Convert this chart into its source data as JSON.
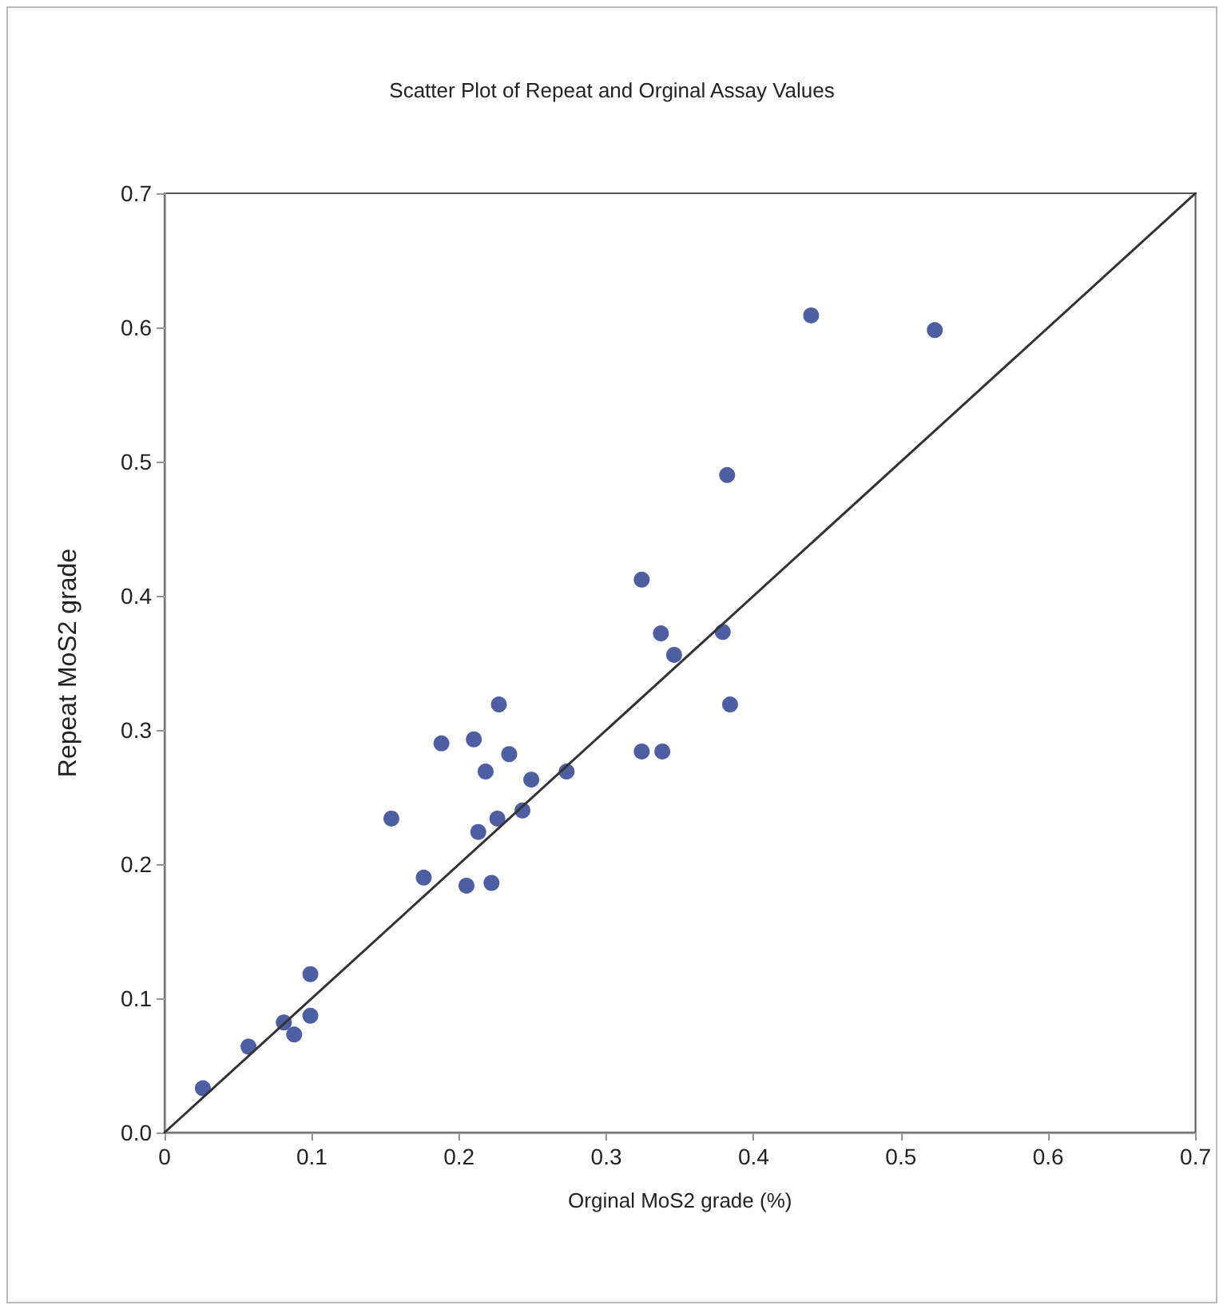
{
  "chart_data": {
    "type": "scatter",
    "title": "Scatter Plot of Repeat and Orginal Assay Values",
    "xlabel": "Orginal MoS2 grade (%)",
    "ylabel": "Repeat MoS2 grade",
    "xlim": [
      0,
      0.7
    ],
    "xticks": [
      0,
      0.1,
      0.2,
      0.3,
      0.4,
      0.5,
      0.6,
      0.7
    ],
    "ylim": [
      0,
      0.7
    ],
    "yticks": [
      {
        "value": 0,
        "label": "0.0"
      },
      0.1,
      0.2,
      0.3,
      0.4,
      0.5,
      0.6,
      0.7
    ],
    "grid": false,
    "marker": "circle",
    "series": [
      {
        "color": "#22368c",
        "x": [
          0.026,
          0.057,
          0.081,
          0.088,
          0.099,
          0.099,
          0.154,
          0.176,
          0.188,
          0.205,
          0.21,
          0.213,
          0.218,
          0.222,
          0.226,
          0.227,
          0.234,
          0.243,
          0.249,
          0.273,
          0.324,
          0.324,
          0.338,
          0.337,
          0.346,
          0.379,
          0.384,
          0.382,
          0.439,
          0.523
        ],
        "values": [
          0.033,
          0.064,
          0.082,
          0.073,
          0.087,
          0.118,
          0.234,
          0.19,
          0.29,
          0.184,
          0.293,
          0.224,
          0.269,
          0.186,
          0.234,
          0.319,
          0.282,
          0.24,
          0.263,
          0.269,
          0.412,
          0.284,
          0.284,
          0.372,
          0.356,
          0.373,
          0.319,
          0.49,
          0.609,
          0.598
        ]
      },
      {
        "type": "line",
        "color": "#333333",
        "line_style": "solid",
        "marker": "none",
        "x": [
          0,
          0.7
        ],
        "values": [
          0,
          0.7
        ]
      }
    ]
  }
}
